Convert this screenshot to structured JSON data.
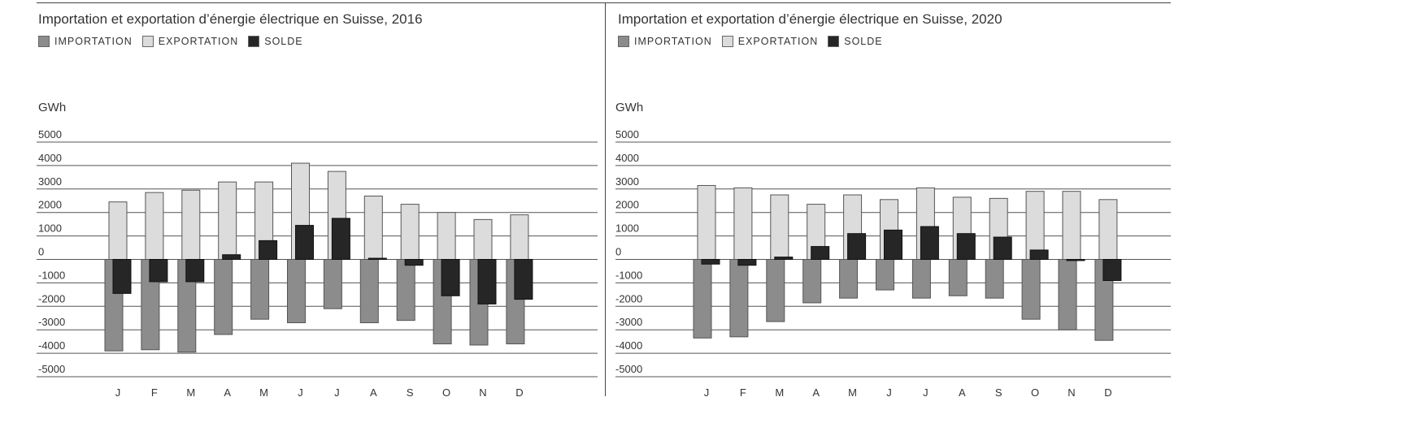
{
  "legend_colors": {
    "import": "#8c8c8c",
    "export": "#dcdcdc",
    "solde": "#262626"
  },
  "chart_data": [
    {
      "type": "bar",
      "title": "Importation et exportation d’énergie électrique en Suisse, 2016",
      "legend": [
        "IMPORTATION",
        "EXPORTATION",
        "SOLDE"
      ],
      "legend_placement": "top-left",
      "ylabel": "GWh",
      "xlabel": "",
      "ylim": [
        -5000,
        5000
      ],
      "yticks": [
        5000,
        4000,
        3000,
        2000,
        1000,
        0,
        -1000,
        -2000,
        -3000,
        -4000,
        -5000
      ],
      "grid": true,
      "categories": [
        "J",
        "F",
        "M",
        "A",
        "M",
        "J",
        "J",
        "A",
        "S",
        "O",
        "N",
        "D"
      ],
      "series": [
        {
          "name": "IMPORTATION",
          "values": [
            -3900,
            -3850,
            -3950,
            -3200,
            -2550,
            -2700,
            -2100,
            -2700,
            -2600,
            -3600,
            -3650,
            -3600
          ]
        },
        {
          "name": "EXPORTATION",
          "values": [
            2450,
            2850,
            2950,
            3300,
            3300,
            4100,
            3750,
            2700,
            2350,
            2000,
            1700,
            1900
          ]
        },
        {
          "name": "SOLDE",
          "values": [
            -1450,
            -950,
            -950,
            200,
            800,
            1450,
            1750,
            50,
            -250,
            -1550,
            -1900,
            -1700
          ]
        }
      ]
    },
    {
      "type": "bar",
      "title": "Importation et exportation d’énergie électrique en Suisse, 2020",
      "legend": [
        "IMPORTATION",
        "EXPORTATION",
        "SOLDE"
      ],
      "legend_placement": "top-left",
      "ylabel": "GWh",
      "xlabel": "",
      "ylim": [
        -5000,
        5000
      ],
      "yticks": [
        5000,
        4000,
        3000,
        2000,
        1000,
        0,
        -1000,
        -2000,
        -3000,
        -4000,
        -5000
      ],
      "grid": true,
      "categories": [
        "J",
        "F",
        "M",
        "A",
        "M",
        "J",
        "J",
        "A",
        "S",
        "O",
        "N",
        "D"
      ],
      "series": [
        {
          "name": "IMPORTATION",
          "values": [
            -3350,
            -3300,
            -2650,
            -1850,
            -1650,
            -1300,
            -1650,
            -1550,
            -1650,
            -2550,
            -3000,
            -3450
          ]
        },
        {
          "name": "EXPORTATION",
          "values": [
            3150,
            3050,
            2750,
            2350,
            2750,
            2550,
            3050,
            2650,
            2600,
            2900,
            2900,
            2550
          ]
        },
        {
          "name": "SOLDE",
          "values": [
            -200,
            -250,
            100,
            550,
            1100,
            1250,
            1400,
            1100,
            950,
            400,
            -50,
            -900
          ]
        }
      ]
    }
  ]
}
